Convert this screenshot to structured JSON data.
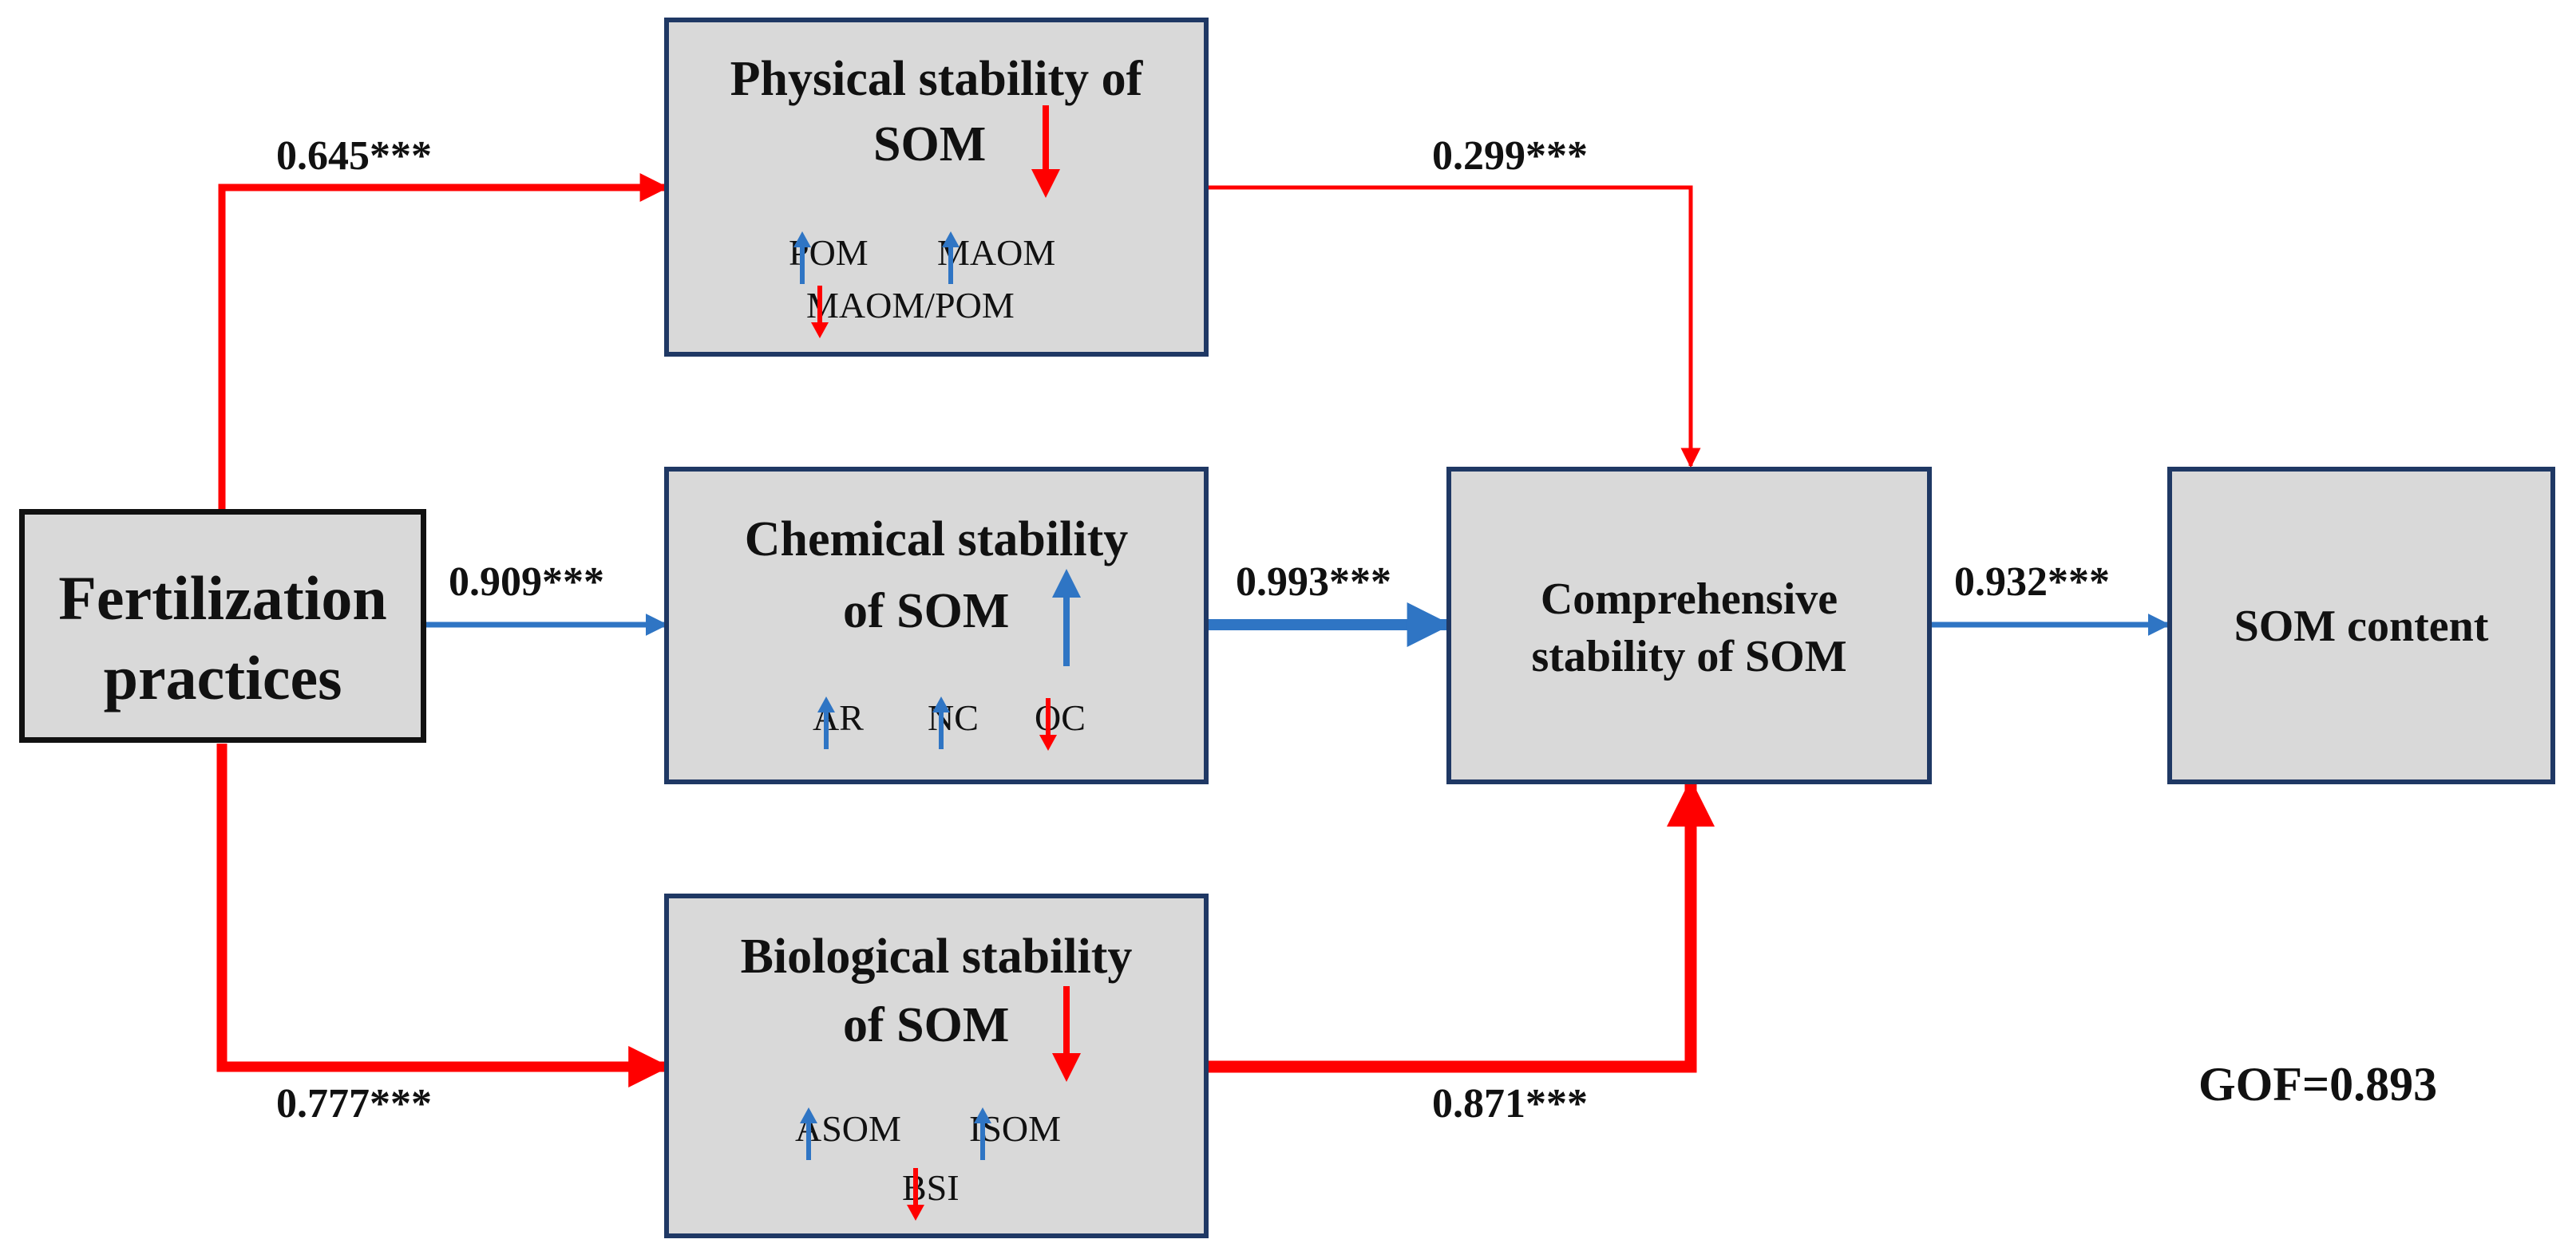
{
  "colors": {
    "red": "#ff0000",
    "blue": "#2f75c4",
    "box_fill": "#d9d9d9",
    "box_border": "#1f3864"
  },
  "nodes": {
    "fertilization": {
      "line1": "Fertilization",
      "line2": "practices"
    },
    "physical": {
      "line1": "Physical stability of",
      "line2": "SOM",
      "trend": "down",
      "indicators": [
        {
          "label": "POM",
          "trend": "up"
        },
        {
          "label": "MAOM",
          "trend": "up"
        },
        {
          "label": "MAOM/POM",
          "trend": "down"
        }
      ]
    },
    "chemical": {
      "line1": "Chemical stability",
      "line2": "of SOM",
      "trend": "up",
      "indicators": [
        {
          "label": "AR",
          "trend": "up"
        },
        {
          "label": "NC",
          "trend": "up"
        },
        {
          "label": "OC",
          "trend": "down"
        }
      ]
    },
    "biological": {
      "line1": "Biological stability",
      "line2": "of SOM",
      "trend": "down",
      "indicators": [
        {
          "label": "ASOM",
          "trend": "up"
        },
        {
          "label": "ISOM",
          "trend": "up"
        },
        {
          "label": "BSI",
          "trend": "down"
        }
      ]
    },
    "comprehensive": {
      "line1": "Comprehensive",
      "line2": "stability of SOM"
    },
    "som_content": {
      "label": "SOM content"
    }
  },
  "paths": [
    {
      "from": "fertilization",
      "to": "physical",
      "coef": "0.645***",
      "sign": "negative"
    },
    {
      "from": "fertilization",
      "to": "chemical",
      "coef": "0.909***",
      "sign": "positive"
    },
    {
      "from": "fertilization",
      "to": "biological",
      "coef": "0.777***",
      "sign": "negative"
    },
    {
      "from": "physical",
      "to": "comprehensive",
      "coef": "0.299***",
      "sign": "negative"
    },
    {
      "from": "chemical",
      "to": "comprehensive",
      "coef": "0.993***",
      "sign": "positive"
    },
    {
      "from": "biological",
      "to": "comprehensive",
      "coef": "0.871***",
      "sign": "negative"
    },
    {
      "from": "comprehensive",
      "to": "som_content",
      "coef": "0.932***",
      "sign": "positive"
    }
  ],
  "gof": "GOF=0.893"
}
